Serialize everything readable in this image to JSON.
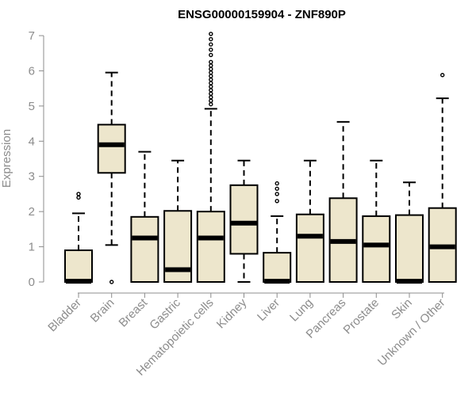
{
  "chart_data": {
    "type": "box",
    "title": "ENSG00000159904 - ZNF890P",
    "ylabel": "Expression",
    "xlabel": "",
    "ylim": [
      0,
      7
    ],
    "yticks": [
      0,
      1,
      2,
      3,
      4,
      5,
      6,
      7
    ],
    "grid": false,
    "colors": {
      "box_fill": "#ede6cc",
      "box_stroke": "#000000",
      "axis": "#8c8c8c"
    },
    "categories": [
      "Bladder",
      "Brain",
      "Breast",
      "Gastric",
      "Hematopoietic cells",
      "Kidney",
      "Liver",
      "Lung",
      "Pancreas",
      "Prostate",
      "Skin",
      "Unknown / Other"
    ],
    "boxes": [
      {
        "category": "Bladder",
        "whisker_low": 0,
        "q1": 0,
        "median": 0.02,
        "q3": 0.9,
        "whisker_high": 1.95,
        "outliers": [
          2.4,
          2.5
        ]
      },
      {
        "category": "Brain",
        "whisker_low": 1.05,
        "q1": 3.1,
        "median": 3.9,
        "q3": 4.47,
        "whisker_high": 5.95,
        "outliers": [
          0
        ]
      },
      {
        "category": "Breast",
        "whisker_low": 0,
        "q1": 0,
        "median": 1.25,
        "q3": 1.85,
        "whisker_high": 3.7,
        "outliers": []
      },
      {
        "category": "Gastric",
        "whisker_low": 0,
        "q1": 0,
        "median": 0.35,
        "q3": 2.02,
        "whisker_high": 3.45,
        "outliers": []
      },
      {
        "category": "Hematopoietic cells",
        "whisker_low": 0,
        "q1": 0,
        "median": 1.25,
        "q3": 2.0,
        "whisker_high": 4.92,
        "outliers": [
          5.05,
          5.15,
          5.25,
          5.35,
          5.45,
          5.55,
          5.65,
          5.75,
          5.85,
          5.95,
          6.05,
          6.15,
          6.25,
          6.45,
          6.6,
          6.75,
          6.9,
          7.05
        ]
      },
      {
        "category": "Kidney",
        "whisker_low": 0,
        "q1": 0.8,
        "median": 1.67,
        "q3": 2.75,
        "whisker_high": 3.45,
        "outliers": []
      },
      {
        "category": "Liver",
        "whisker_low": 0,
        "q1": 0,
        "median": 0.02,
        "q3": 0.83,
        "whisker_high": 1.87,
        "outliers": [
          2.3,
          2.5,
          2.65,
          2.8
        ]
      },
      {
        "category": "Lung",
        "whisker_low": 0,
        "q1": 0,
        "median": 1.3,
        "q3": 1.92,
        "whisker_high": 3.45,
        "outliers": []
      },
      {
        "category": "Pancreas",
        "whisker_low": 0,
        "q1": 0,
        "median": 1.15,
        "q3": 2.38,
        "whisker_high": 4.55,
        "outliers": []
      },
      {
        "category": "Prostate",
        "whisker_low": 0,
        "q1": 0,
        "median": 1.05,
        "q3": 1.87,
        "whisker_high": 3.45,
        "outliers": []
      },
      {
        "category": "Skin",
        "whisker_low": 0,
        "q1": 0,
        "median": 0.02,
        "q3": 1.9,
        "whisker_high": 2.83,
        "outliers": []
      },
      {
        "category": "Unknown / Other",
        "whisker_low": 0,
        "q1": 0,
        "median": 1.0,
        "q3": 2.1,
        "whisker_high": 5.22,
        "outliers": [
          5.88
        ]
      }
    ]
  }
}
